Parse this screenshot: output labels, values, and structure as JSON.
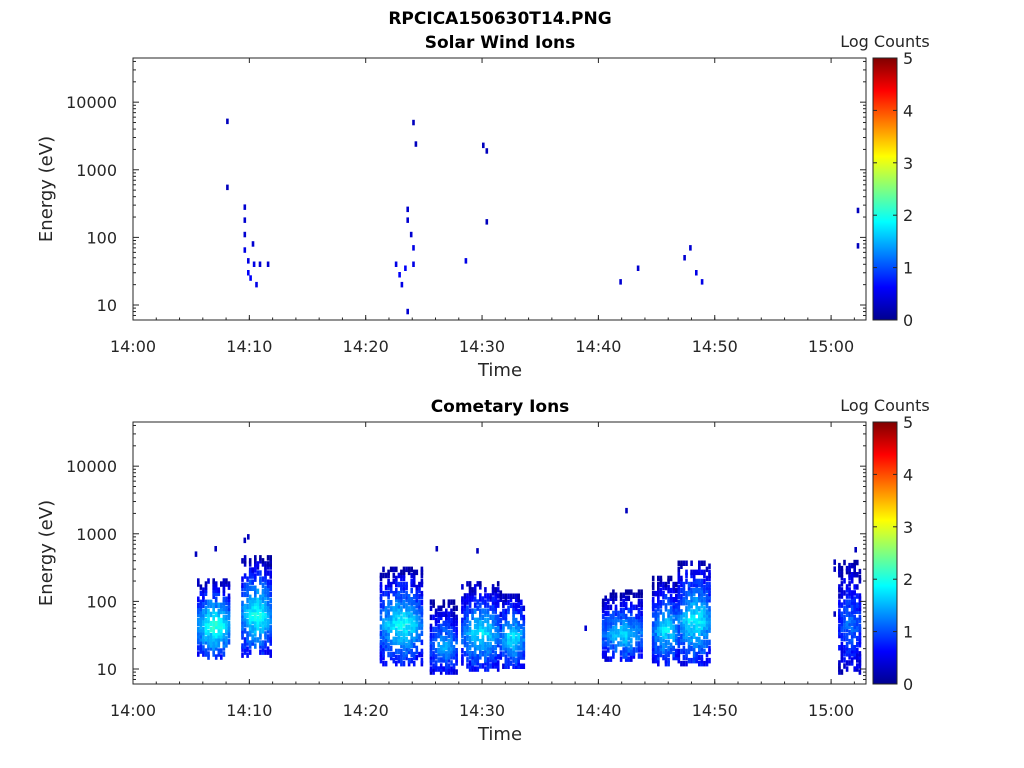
{
  "figure": {
    "title": "RPCICA150630T14.PNG"
  },
  "chart_data": [
    {
      "type": "heatmap",
      "title": "Solar Wind Ions",
      "xlabel": "Time",
      "ylabel": "Energy (eV)",
      "x_ticks": [
        "14:00",
        "14:10",
        "14:20",
        "14:30",
        "14:40",
        "14:50",
        "15:00"
      ],
      "y_ticks": [
        "10",
        "100",
        "1000",
        "10000"
      ],
      "y_scale": "log",
      "xlim": [
        "14:00",
        "15:03"
      ],
      "ylim": [
        6,
        45000
      ],
      "colorbar": {
        "label": "Log Counts",
        "range": [
          0,
          5
        ],
        "ticks": [
          "0",
          "1",
          "2",
          "3",
          "4",
          "5"
        ],
        "colormap": "jet"
      },
      "cells": [
        [
          "14:08",
          5200,
          0.3
        ],
        [
          "14:08",
          550,
          0.3
        ],
        [
          "14:09.5",
          280,
          0.4
        ],
        [
          "14:09.5",
          180,
          0.4
        ],
        [
          "14:09.5",
          110,
          0.4
        ],
        [
          "14:09.5",
          65,
          0.5
        ],
        [
          "14:09.8",
          45,
          0.5
        ],
        [
          "14:09.8",
          30,
          0.6
        ],
        [
          "14:10",
          25,
          0.6
        ],
        [
          "14:10.2",
          80,
          0.4
        ],
        [
          "14:10.3",
          40,
          0.5
        ],
        [
          "14:10.5",
          20,
          0.5
        ],
        [
          "14:10.8",
          40,
          0.4
        ],
        [
          "14:11.5",
          40,
          0.4
        ],
        [
          "14:22.5",
          40,
          0.5
        ],
        [
          "14:22.8",
          28,
          0.6
        ],
        [
          "14:23",
          20,
          0.5
        ],
        [
          "14:23.3",
          35,
          0.6
        ],
        [
          "14:23.5",
          260,
          0.4
        ],
        [
          "14:23.5",
          180,
          0.4
        ],
        [
          "14:23.8",
          110,
          0.4
        ],
        [
          "14:24",
          70,
          0.5
        ],
        [
          "14:24",
          40,
          0.5
        ],
        [
          "14:23.5",
          8,
          0.4
        ],
        [
          "14:24",
          5000,
          0.3
        ],
        [
          "14:24.2",
          2400,
          0.3
        ],
        [
          "14:28.5",
          45,
          0.5
        ],
        [
          "14:30",
          2300,
          0.3
        ],
        [
          "14:30.3",
          1900,
          0.3
        ],
        [
          "14:30.3",
          170,
          0.3
        ],
        [
          "14:41.8",
          22,
          0.4
        ],
        [
          "14:43.3",
          35,
          0.4
        ],
        [
          "14:47.3",
          50,
          0.4
        ],
        [
          "14:47.8",
          70,
          0.4
        ],
        [
          "14:48.3",
          30,
          0.5
        ],
        [
          "14:48.8",
          22,
          0.5
        ],
        [
          "15:02.2",
          250,
          0.3
        ],
        [
          "15:02.2",
          75,
          0.3
        ]
      ]
    },
    {
      "type": "heatmap",
      "title": "Cometary Ions",
      "xlabel": "Time",
      "ylabel": "Energy (eV)",
      "x_ticks": [
        "14:00",
        "14:10",
        "14:20",
        "14:30",
        "14:40",
        "14:50",
        "15:00"
      ],
      "y_ticks": [
        "10",
        "100",
        "1000",
        "10000"
      ],
      "y_scale": "log",
      "xlim": [
        "14:00",
        "15:03"
      ],
      "ylim": [
        6,
        45000
      ],
      "colorbar": {
        "label": "Log Counts",
        "range": [
          0,
          5
        ],
        "ticks": [
          "0",
          "1",
          "2",
          "3",
          "4",
          "5"
        ],
        "colormap": "jet"
      },
      "bursts": [
        {
          "t0": "14:05.5",
          "t1": "14:08.3",
          "elo": 15,
          "ehi": 220,
          "peak": 2.1
        },
        {
          "t0": "14:09.3",
          "t1": "14:11.8",
          "elo": 16,
          "ehi": 450,
          "peak": 2.0
        },
        {
          "t0": "14:21.2",
          "t1": "14:24.8",
          "elo": 12,
          "ehi": 300,
          "peak": 1.9
        },
        {
          "t0": "14:25.5",
          "t1": "14:27.8",
          "elo": 9,
          "ehi": 100,
          "peak": 1.5
        },
        {
          "t0": "14:28.2",
          "t1": "14:31.5",
          "elo": 10,
          "ehi": 200,
          "peak": 1.8
        },
        {
          "t0": "14:31.5",
          "t1": "14:33.6",
          "elo": 11,
          "ehi": 140,
          "peak": 1.8
        },
        {
          "t0": "14:40.3",
          "t1": "14:43.8",
          "elo": 14,
          "ehi": 140,
          "peak": 1.7
        },
        {
          "t0": "14:44.6",
          "t1": "14:46.8",
          "elo": 12,
          "ehi": 220,
          "peak": 1.8
        },
        {
          "t0": "14:46.8",
          "t1": "14:49.6",
          "elo": 12,
          "ehi": 400,
          "peak": 1.9
        },
        {
          "t0": "15:00.6",
          "t1": "15:02.5",
          "elo": 9,
          "ehi": 400,
          "peak": 1.2
        }
      ],
      "cells": [
        [
          "14:05.3",
          500,
          0.3
        ],
        [
          "14:07",
          600,
          0.3
        ],
        [
          "14:09.8",
          900,
          0.3
        ],
        [
          "14:09.5",
          800,
          0.3
        ],
        [
          "14:26",
          600,
          0.3
        ],
        [
          "14:29.5",
          560,
          0.3
        ],
        [
          "14:42.3",
          2200,
          0.3
        ],
        [
          "14:38.8",
          40,
          0.4
        ],
        [
          "15:00.2",
          380,
          0.3
        ],
        [
          "15:00.2",
          300,
          0.3
        ],
        [
          "15:00.2",
          65,
          0.3
        ],
        [
          "15:02",
          580,
          0.3
        ]
      ]
    }
  ]
}
